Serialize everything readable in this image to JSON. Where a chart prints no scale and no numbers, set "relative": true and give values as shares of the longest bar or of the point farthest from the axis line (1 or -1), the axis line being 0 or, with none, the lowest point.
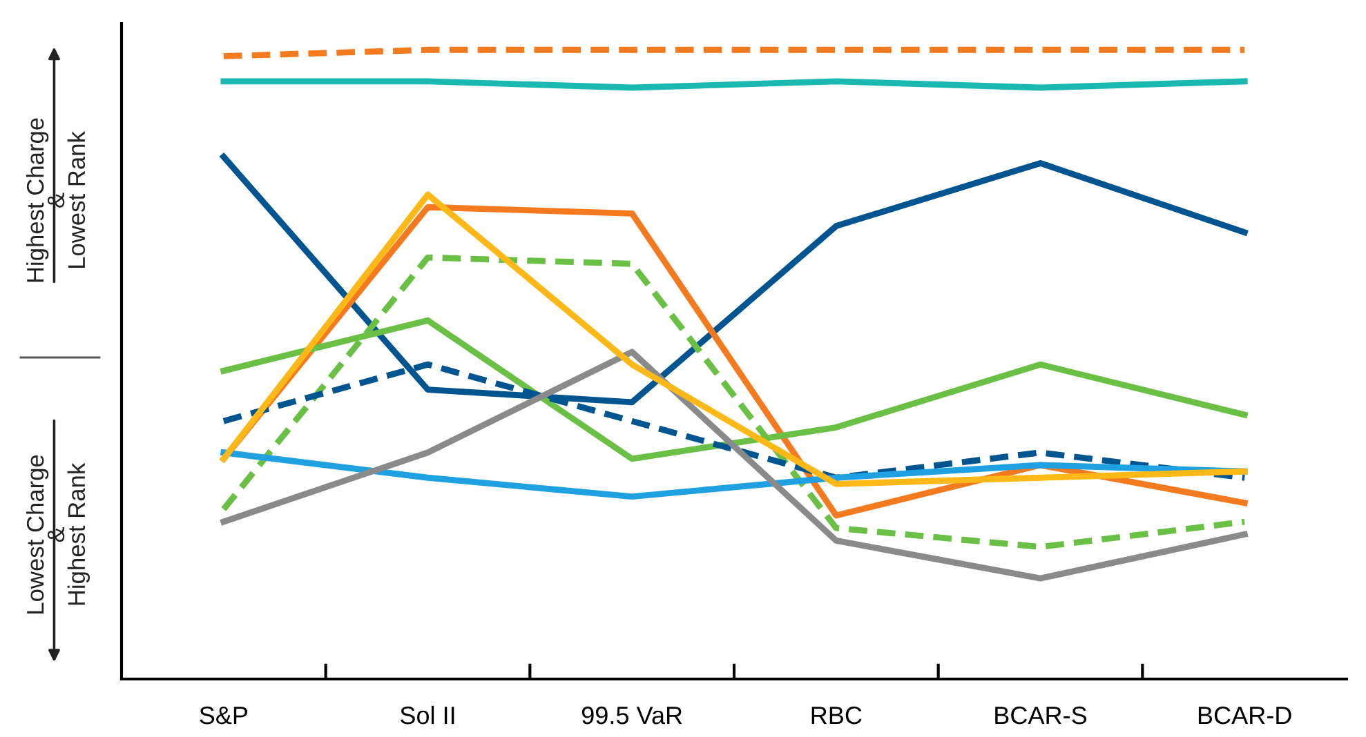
{
  "chart_data": {
    "type": "line",
    "relative": true,
    "grid": false,
    "marker": "none",
    "tick_labels": "x",
    "categories": [
      "S&P",
      "Sol II",
      "99.5 VaR",
      "RBC",
      "BCAR-S",
      "BCAR-D"
    ],
    "annotations": [
      "Highest Charge\n&\nLowest Rank",
      "Lowest Charge\n&\nHighest Rank"
    ],
    "series": [
      {
        "color": "#f47a20",
        "line_style": "dashed",
        "values": [
          0.99,
          1,
          1,
          1,
          1,
          1
        ]
      },
      {
        "color": "#1ab8b0",
        "line_style": "solid",
        "values": [
          0.95,
          0.95,
          0.94,
          0.95,
          0.94,
          0.95
        ]
      },
      {
        "color": "#00548f",
        "line_style": "solid",
        "values": [
          0.83,
          0.46,
          0.44,
          0.72,
          0.82,
          0.71
        ]
      },
      {
        "color": "#f47a20",
        "line_style": "solid",
        "values": [
          0.35,
          0.75,
          0.74,
          0.26,
          0.34,
          0.28
        ]
      },
      {
        "color": "#6abf45",
        "line_style": "dashed",
        "values": [
          0.27,
          0.67,
          0.66,
          0.24,
          0.21,
          0.25
        ]
      },
      {
        "color": "#6abf45",
        "line_style": "solid",
        "values": [
          0.49,
          0.57,
          0.35,
          0.4,
          0.5,
          0.42
        ]
      },
      {
        "color": "#00548f",
        "line_style": "dashed",
        "values": [
          0.41,
          0.5,
          0.41,
          0.32,
          0.36,
          0.32
        ]
      },
      {
        "color": "#1fa0e0",
        "line_style": "solid",
        "values": [
          0.36,
          0.32,
          0.29,
          0.32,
          0.34,
          0.33
        ]
      },
      {
        "color": "#8a8a8a",
        "line_style": "solid",
        "values": [
          0.25,
          0.36,
          0.52,
          0.22,
          0.16,
          0.23
        ]
      },
      {
        "color": "#fbb817",
        "line_style": "solid",
        "values": [
          0.35,
          0.77,
          0.5,
          0.31,
          0.32,
          0.33
        ]
      }
    ]
  }
}
